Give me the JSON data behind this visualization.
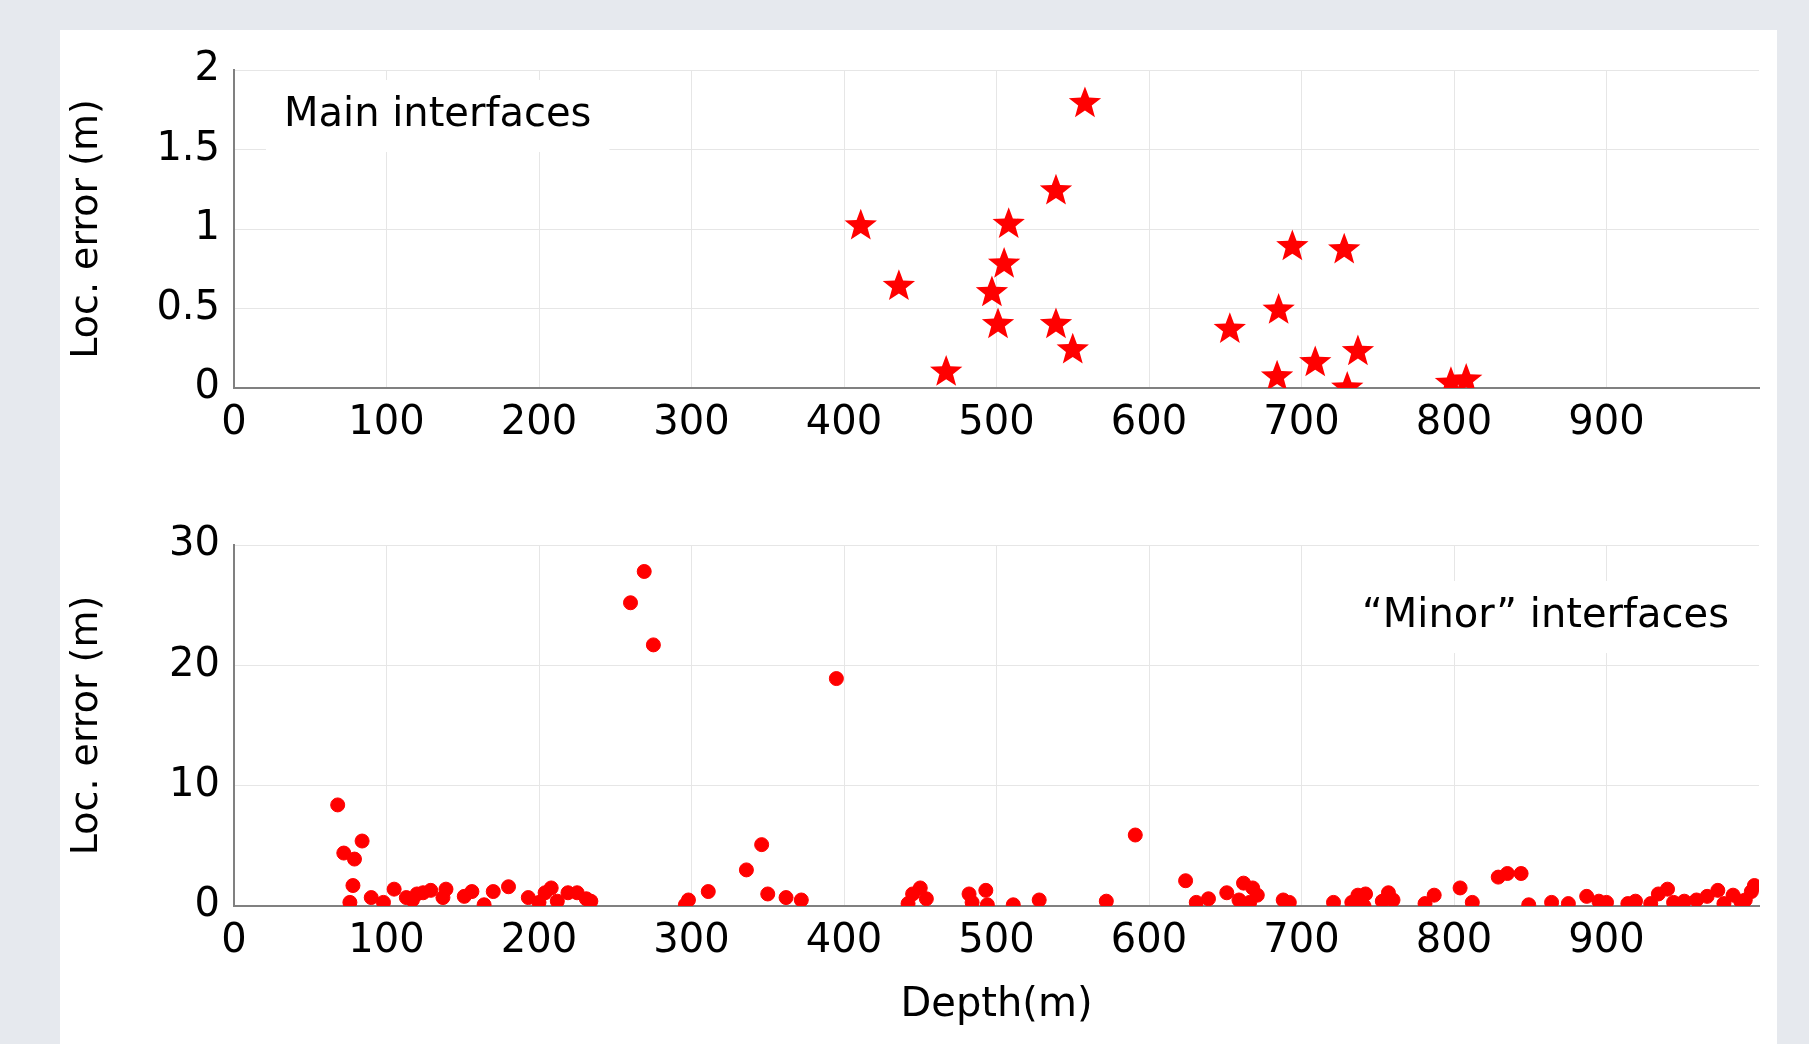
{
  "chart_data": [
    {
      "type": "scatter",
      "ylabel": "Loc. error (m)",
      "annotations": [
        "Main interfaces"
      ],
      "marker": "star",
      "grid": true,
      "xlim": [
        0,
        1000
      ],
      "xticks": [
        0,
        100,
        200,
        300,
        400,
        500,
        600,
        700,
        800,
        900
      ],
      "ylim": [
        0,
        2
      ],
      "yticks": [
        0,
        0.5,
        1,
        1.5,
        2
      ],
      "series": [
        {
          "color": "#ff0000",
          "x": [
            411,
            436,
            467,
            497,
            501,
            505,
            508,
            539,
            558,
            539,
            550,
            653,
            685,
            684,
            694,
            709,
            728,
            730,
            737,
            798,
            808
          ],
          "values": [
            1.02,
            0.64,
            0.1,
            0.6,
            0.4,
            0.78,
            1.03,
            1.24,
            1.79,
            0.4,
            0.24,
            0.37,
            0.49,
            0.07,
            0.89,
            0.16,
            0.87,
            0.0,
            0.23,
            0.03,
            0.05
          ]
        }
      ]
    },
    {
      "type": "scatter",
      "xlabel": "Depth(m)",
      "ylabel": "Loc. error (m)",
      "annotations": [
        "“Minor” interfaces"
      ],
      "marker": "circle",
      "grid": true,
      "xlim": [
        0,
        1000
      ],
      "xticks": [
        0,
        100,
        200,
        300,
        400,
        500,
        600,
        700,
        800,
        900
      ],
      "ylim": [
        0,
        30
      ],
      "yticks": [
        0,
        10,
        20,
        30
      ],
      "series": [
        {
          "color": "#ff0000",
          "x": [
            68,
            72,
            79,
            84,
            78,
            76,
            90,
            98,
            105,
            113,
            117,
            120,
            124,
            129,
            137,
            139,
            151,
            156,
            164,
            170,
            180,
            193,
            200,
            204,
            208,
            212,
            219,
            225,
            231,
            234,
            260,
            269,
            275,
            296,
            298,
            311,
            336,
            346,
            350,
            362,
            372,
            395,
            442,
            445,
            450,
            454,
            482,
            484,
            493,
            494,
            511,
            528,
            572,
            591,
            624,
            631,
            639,
            651,
            659,
            662,
            666,
            668,
            671,
            688,
            692,
            721,
            733,
            737,
            741,
            742,
            753,
            757,
            760,
            781,
            787,
            804,
            812,
            829,
            835,
            844,
            849,
            864,
            875,
            887,
            895,
            900,
            914,
            919,
            929,
            934,
            940,
            944,
            951,
            959,
            966,
            973,
            977,
            983,
            988,
            991,
            995,
            997
          ],
          "values": [
            8.4,
            4.4,
            3.9,
            5.4,
            1.7,
            0.3,
            0.7,
            0.3,
            1.4,
            0.7,
            0.5,
            1.0,
            1.1,
            1.3,
            0.7,
            1.4,
            0.8,
            1.2,
            0.1,
            1.2,
            1.6,
            0.7,
            0.3,
            1.1,
            1.5,
            0.4,
            1.1,
            1.1,
            0.6,
            0.4,
            25.2,
            27.8,
            21.7,
            0.1,
            0.5,
            1.2,
            3.0,
            5.1,
            1.0,
            0.7,
            0.5,
            18.9,
            0.2,
            1.0,
            1.5,
            0.6,
            1.0,
            0.3,
            1.3,
            0.1,
            0.1,
            0.5,
            0.4,
            5.9,
            2.1,
            0.3,
            0.6,
            1.1,
            0.5,
            1.9,
            0.3,
            1.5,
            0.9,
            0.5,
            0.3,
            0.3,
            0.3,
            0.9,
            0.0,
            1.0,
            0.4,
            1.1,
            0.5,
            0.2,
            0.9,
            1.5,
            0.3,
            2.4,
            2.7,
            2.7,
            0.1,
            0.3,
            0.2,
            0.8,
            0.4,
            0.3,
            0.2,
            0.4,
            0.2,
            1.0,
            1.4,
            0.3,
            0.4,
            0.5,
            0.8,
            1.3,
            0.2,
            0.9,
            0.4,
            0.5,
            1.2,
            1.7
          ]
        }
      ]
    }
  ]
}
